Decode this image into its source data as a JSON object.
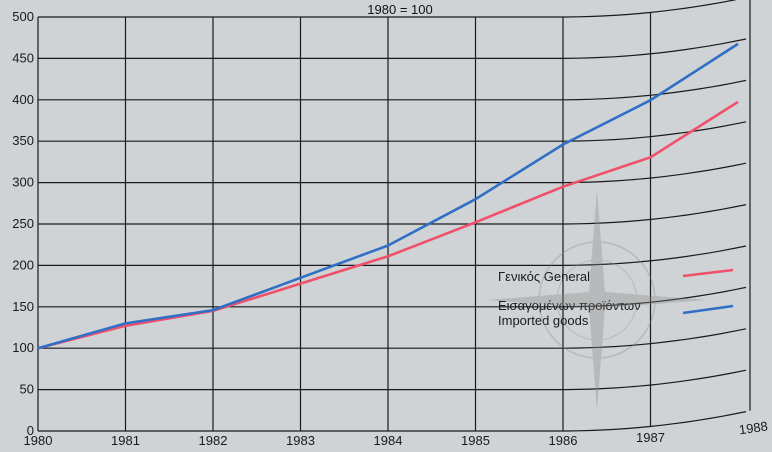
{
  "chart_data": {
    "type": "line",
    "title": "1980 = 100",
    "x": [
      "1980",
      "1981",
      "1982",
      "1983",
      "1984",
      "1985",
      "1986",
      "1987",
      "1988"
    ],
    "ylim": [
      0,
      500
    ],
    "yticks": [
      0,
      50,
      100,
      150,
      200,
      250,
      300,
      350,
      400,
      450,
      500
    ],
    "grid": true,
    "legend_position": "right-middle",
    "series": [
      {
        "name": "Γενικός  General",
        "color": "#f0506a",
        "values": [
          100,
          127,
          145,
          178,
          211,
          252,
          295,
          325,
          376
        ]
      },
      {
        "name": "Εισαγομένων προϊόντων / Imported goods",
        "color": "#2f6fc6",
        "values": [
          100,
          130,
          146,
          185,
          224,
          280,
          346,
          394,
          446
        ]
      }
    ],
    "legend": {
      "general_label": "Γενικός  General",
      "imported_label_line1": "Εισαγομένων προϊόντων",
      "imported_label_line2": "Imported goods"
    },
    "colors": {
      "background": "#cfd3d6",
      "grid": "#1a1a1a"
    }
  }
}
